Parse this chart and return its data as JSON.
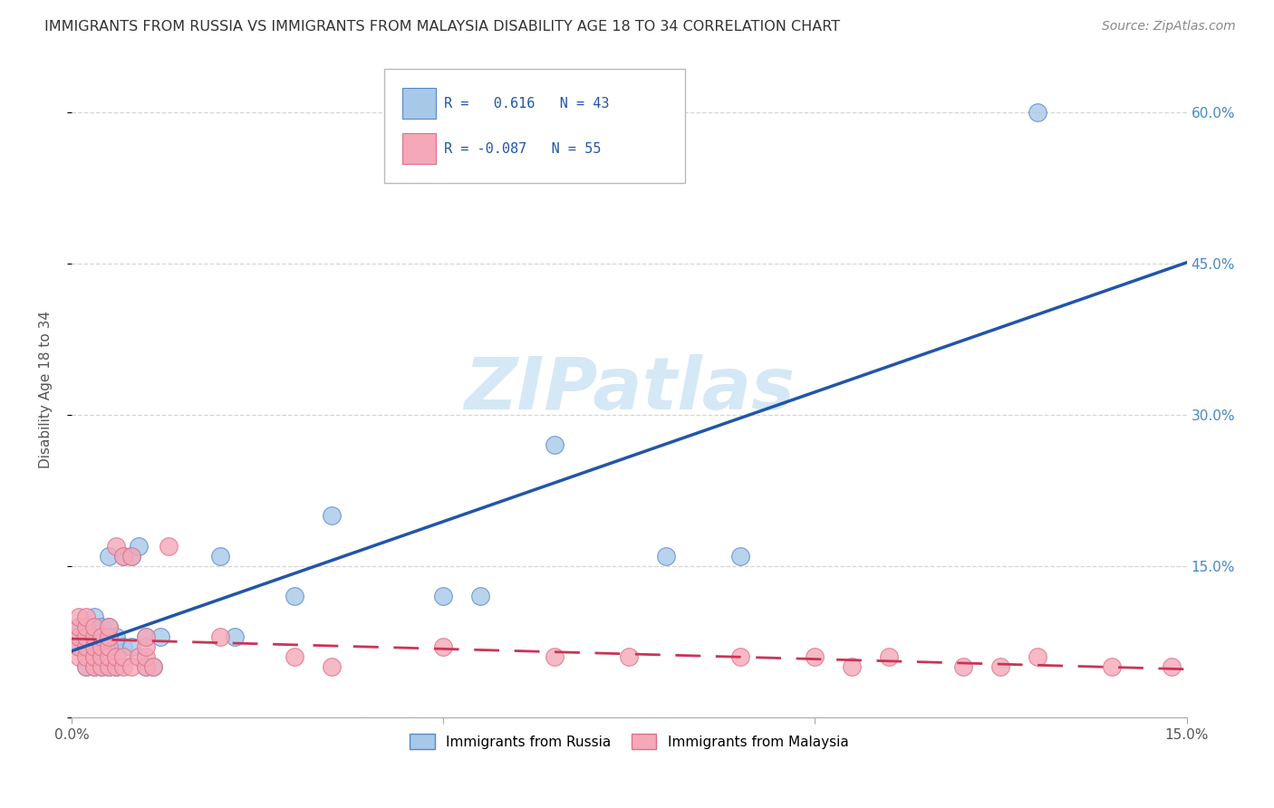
{
  "title": "IMMIGRANTS FROM RUSSIA VS IMMIGRANTS FROM MALAYSIA DISABILITY AGE 18 TO 34 CORRELATION CHART",
  "source": "Source: ZipAtlas.com",
  "ylabel": "Disability Age 18 to 34",
  "xlim": [
    0.0,
    0.15
  ],
  "ylim": [
    0.0,
    0.65
  ],
  "xticks": [
    0.0,
    0.05,
    0.1,
    0.15
  ],
  "xticklabels": [
    "0.0%",
    "",
    "",
    "15.0%"
  ],
  "yticks": [
    0.0,
    0.15,
    0.3,
    0.45,
    0.6
  ],
  "right_yticklabels": [
    "",
    "15.0%",
    "30.0%",
    "45.0%",
    "60.0%"
  ],
  "blue_R": 0.616,
  "blue_N": 43,
  "pink_R": -0.087,
  "pink_N": 55,
  "background_color": "#ffffff",
  "blue_color": "#a8c8e8",
  "pink_color": "#f4a8b8",
  "blue_edge_color": "#5588cc",
  "pink_edge_color": "#dd7088",
  "blue_line_color": "#2255aa",
  "pink_line_color": "#cc3355",
  "watermark_color": "#d5e8f5",
  "russia_x": [
    0.001,
    0.001,
    0.001,
    0.002,
    0.002,
    0.002,
    0.002,
    0.003,
    0.003,
    0.003,
    0.003,
    0.003,
    0.004,
    0.004,
    0.004,
    0.004,
    0.005,
    0.005,
    0.005,
    0.005,
    0.005,
    0.006,
    0.006,
    0.006,
    0.007,
    0.007,
    0.008,
    0.008,
    0.009,
    0.01,
    0.01,
    0.011,
    0.012,
    0.02,
    0.022,
    0.03,
    0.035,
    0.05,
    0.055,
    0.065,
    0.08,
    0.09,
    0.13
  ],
  "russia_y": [
    0.07,
    0.08,
    0.09,
    0.05,
    0.07,
    0.08,
    0.09,
    0.05,
    0.07,
    0.08,
    0.09,
    0.1,
    0.05,
    0.07,
    0.08,
    0.09,
    0.05,
    0.07,
    0.08,
    0.09,
    0.16,
    0.05,
    0.07,
    0.08,
    0.07,
    0.16,
    0.07,
    0.16,
    0.17,
    0.05,
    0.08,
    0.05,
    0.08,
    0.16,
    0.08,
    0.12,
    0.2,
    0.12,
    0.12,
    0.27,
    0.16,
    0.16,
    0.6
  ],
  "malaysia_x": [
    0.001,
    0.001,
    0.001,
    0.001,
    0.001,
    0.002,
    0.002,
    0.002,
    0.002,
    0.002,
    0.002,
    0.003,
    0.003,
    0.003,
    0.003,
    0.003,
    0.004,
    0.004,
    0.004,
    0.004,
    0.005,
    0.005,
    0.005,
    0.005,
    0.005,
    0.006,
    0.006,
    0.006,
    0.007,
    0.007,
    0.007,
    0.008,
    0.008,
    0.009,
    0.01,
    0.01,
    0.01,
    0.01,
    0.011,
    0.013,
    0.02,
    0.03,
    0.035,
    0.05,
    0.065,
    0.075,
    0.09,
    0.1,
    0.105,
    0.11,
    0.12,
    0.125,
    0.13,
    0.14,
    0.148
  ],
  "malaysia_y": [
    0.06,
    0.07,
    0.08,
    0.09,
    0.1,
    0.05,
    0.06,
    0.07,
    0.08,
    0.09,
    0.1,
    0.05,
    0.06,
    0.07,
    0.08,
    0.09,
    0.05,
    0.06,
    0.07,
    0.08,
    0.05,
    0.06,
    0.07,
    0.08,
    0.09,
    0.05,
    0.06,
    0.17,
    0.05,
    0.06,
    0.16,
    0.05,
    0.16,
    0.06,
    0.05,
    0.06,
    0.07,
    0.08,
    0.05,
    0.17,
    0.08,
    0.06,
    0.05,
    0.07,
    0.06,
    0.06,
    0.06,
    0.06,
    0.05,
    0.06,
    0.05,
    0.05,
    0.06,
    0.05,
    0.05
  ]
}
